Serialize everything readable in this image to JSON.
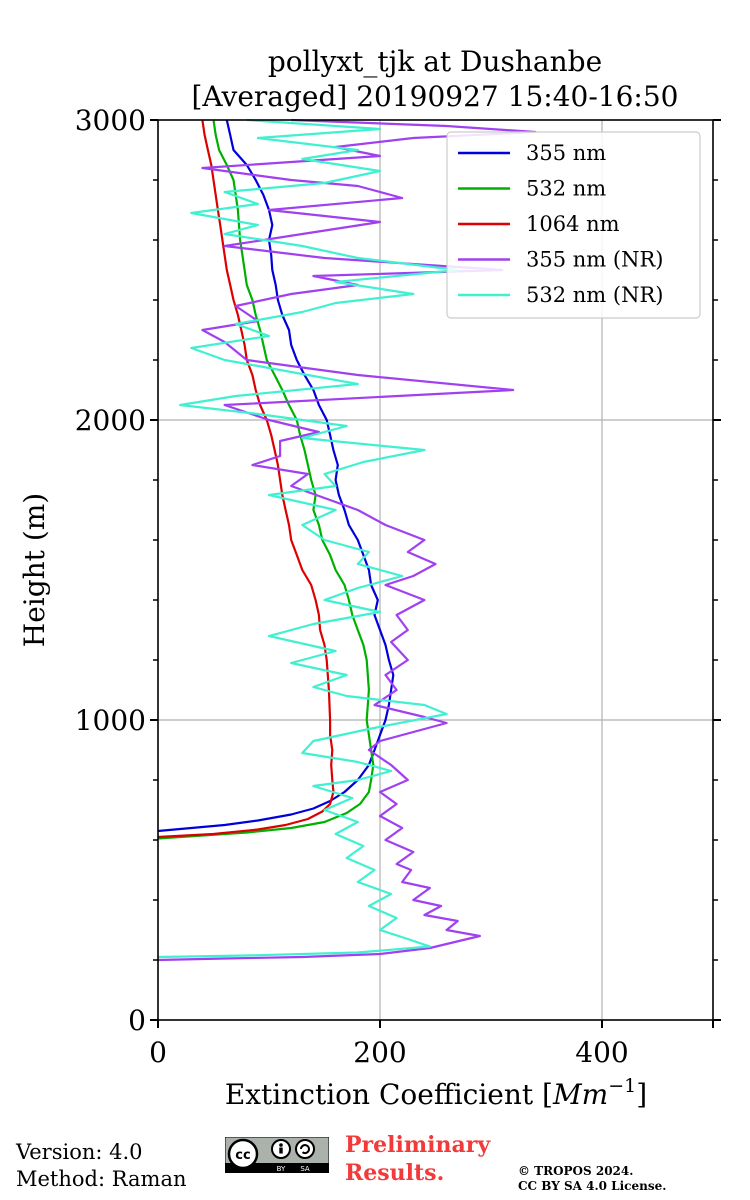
{
  "chart_data": {
    "type": "line",
    "title_line1": "pollyxt_tjk at Dushanbe",
    "title_line2": "[Averaged] 20190927 15:40-16:50",
    "xlabel_text": "Extinction Coefficient [",
    "xlabel_unit": "Mm",
    "xlabel_exp": "−1",
    "xlabel_close": "]",
    "ylabel": "Height (m)",
    "xlim": [
      0,
      500
    ],
    "ylim": [
      0,
      3000
    ],
    "x_ticks": [
      0,
      200,
      400
    ],
    "x_tick_labels": [
      "0",
      "200",
      "400"
    ],
    "y_ticks": [
      0,
      1000,
      2000,
      3000
    ],
    "y_tick_labels": [
      "0",
      "1000",
      "2000",
      "3000"
    ],
    "y_minor_step": 200,
    "grid": true,
    "legend_position": "top-right",
    "series": [
      {
        "name": "355 nm",
        "color": "#0000dd",
        "points": [
          [
            0,
            630
          ],
          [
            30,
            640
          ],
          [
            60,
            650
          ],
          [
            90,
            665
          ],
          [
            120,
            685
          ],
          [
            140,
            705
          ],
          [
            155,
            730
          ],
          [
            168,
            760
          ],
          [
            180,
            800
          ],
          [
            190,
            850
          ],
          [
            195,
            900
          ],
          [
            200,
            950
          ],
          [
            205,
            1000
          ],
          [
            208,
            1050
          ],
          [
            210,
            1100
          ],
          [
            212,
            1150
          ],
          [
            208,
            1200
          ],
          [
            205,
            1250
          ],
          [
            200,
            1300
          ],
          [
            195,
            1350
          ],
          [
            198,
            1400
          ],
          [
            192,
            1450
          ],
          [
            190,
            1500
          ],
          [
            185,
            1550
          ],
          [
            180,
            1600
          ],
          [
            172,
            1650
          ],
          [
            168,
            1700
          ],
          [
            163,
            1750
          ],
          [
            160,
            1800
          ],
          [
            162,
            1850
          ],
          [
            158,
            1900
          ],
          [
            155,
            1950
          ],
          [
            152,
            2000
          ],
          [
            145,
            2050
          ],
          [
            140,
            2100
          ],
          [
            132,
            2150
          ],
          [
            125,
            2200
          ],
          [
            120,
            2250
          ],
          [
            118,
            2300
          ],
          [
            112,
            2350
          ],
          [
            108,
            2400
          ],
          [
            106,
            2450
          ],
          [
            103,
            2500
          ],
          [
            102,
            2550
          ],
          [
            100,
            2600
          ],
          [
            103,
            2650
          ],
          [
            100,
            2700
          ],
          [
            95,
            2750
          ],
          [
            88,
            2800
          ],
          [
            80,
            2850
          ],
          [
            68,
            2900
          ],
          [
            65,
            2950
          ],
          [
            62,
            3000
          ]
        ]
      },
      {
        "name": "532 nm",
        "color": "#00b000",
        "points": [
          [
            0,
            605
          ],
          [
            40,
            615
          ],
          [
            80,
            625
          ],
          [
            120,
            640
          ],
          [
            150,
            660
          ],
          [
            170,
            690
          ],
          [
            182,
            720
          ],
          [
            190,
            760
          ],
          [
            192,
            800
          ],
          [
            194,
            850
          ],
          [
            192,
            900
          ],
          [
            190,
            950
          ],
          [
            188,
            1000
          ],
          [
            190,
            1100
          ],
          [
            188,
            1200
          ],
          [
            185,
            1250
          ],
          [
            180,
            1300
          ],
          [
            175,
            1350
          ],
          [
            172,
            1400
          ],
          [
            168,
            1450
          ],
          [
            160,
            1500
          ],
          [
            155,
            1550
          ],
          [
            148,
            1600
          ],
          [
            145,
            1650
          ],
          [
            140,
            1700
          ],
          [
            142,
            1750
          ],
          [
            138,
            1800
          ],
          [
            135,
            1850
          ],
          [
            132,
            1900
          ],
          [
            128,
            1950
          ],
          [
            125,
            2000
          ],
          [
            118,
            2050
          ],
          [
            112,
            2100
          ],
          [
            105,
            2150
          ],
          [
            98,
            2200
          ],
          [
            95,
            2250
          ],
          [
            92,
            2300
          ],
          [
            88,
            2350
          ],
          [
            85,
            2400
          ],
          [
            80,
            2450
          ],
          [
            78,
            2500
          ],
          [
            76,
            2550
          ],
          [
            74,
            2600
          ],
          [
            73,
            2650
          ],
          [
            72,
            2700
          ],
          [
            70,
            2750
          ],
          [
            68,
            2800
          ],
          [
            62,
            2850
          ],
          [
            55,
            2900
          ],
          [
            52,
            2950
          ],
          [
            50,
            3000
          ]
        ]
      },
      {
        "name": "1064 nm",
        "color": "#dd0000",
        "points": [
          [
            0,
            610
          ],
          [
            50,
            620
          ],
          [
            90,
            635
          ],
          [
            115,
            650
          ],
          [
            135,
            670
          ],
          [
            148,
            695
          ],
          [
            155,
            720
          ],
          [
            158,
            760
          ],
          [
            157,
            800
          ],
          [
            156,
            850
          ],
          [
            157,
            900
          ],
          [
            155,
            950
          ],
          [
            155,
            1000
          ],
          [
            154,
            1100
          ],
          [
            152,
            1200
          ],
          [
            150,
            1250
          ],
          [
            146,
            1300
          ],
          [
            145,
            1350
          ],
          [
            142,
            1400
          ],
          [
            138,
            1450
          ],
          [
            130,
            1500
          ],
          [
            125,
            1550
          ],
          [
            120,
            1600
          ],
          [
            118,
            1650
          ],
          [
            115,
            1700
          ],
          [
            112,
            1750
          ],
          [
            110,
            1800
          ],
          [
            108,
            1850
          ],
          [
            105,
            1900
          ],
          [
            102,
            1950
          ],
          [
            98,
            2000
          ],
          [
            92,
            2050
          ],
          [
            88,
            2100
          ],
          [
            85,
            2150
          ],
          [
            80,
            2200
          ],
          [
            78,
            2250
          ],
          [
            75,
            2300
          ],
          [
            72,
            2350
          ],
          [
            68,
            2400
          ],
          [
            65,
            2450
          ],
          [
            62,
            2500
          ],
          [
            60,
            2550
          ],
          [
            58,
            2600
          ],
          [
            56,
            2650
          ],
          [
            54,
            2700
          ],
          [
            52,
            2750
          ],
          [
            50,
            2800
          ],
          [
            48,
            2850
          ],
          [
            45,
            2900
          ],
          [
            42,
            2950
          ],
          [
            40,
            3000
          ]
        ]
      },
      {
        "name": "355 nm (NR)",
        "color": "#a040f0",
        "points": [
          [
            0,
            200
          ],
          [
            60,
            205
          ],
          [
            130,
            210
          ],
          [
            200,
            220
          ],
          [
            245,
            240
          ],
          [
            290,
            280
          ],
          [
            260,
            300
          ],
          [
            270,
            330
          ],
          [
            240,
            350
          ],
          [
            255,
            380
          ],
          [
            230,
            400
          ],
          [
            245,
            440
          ],
          [
            220,
            460
          ],
          [
            228,
            500
          ],
          [
            215,
            520
          ],
          [
            230,
            560
          ],
          [
            205,
            600
          ],
          [
            220,
            640
          ],
          [
            200,
            680
          ],
          [
            215,
            720
          ],
          [
            200,
            760
          ],
          [
            225,
            800
          ],
          [
            210,
            850
          ],
          [
            190,
            900
          ],
          [
            200,
            930
          ],
          [
            260,
            990
          ],
          [
            240,
            1010
          ],
          [
            195,
            1050
          ],
          [
            215,
            1100
          ],
          [
            205,
            1150
          ],
          [
            225,
            1200
          ],
          [
            210,
            1260
          ],
          [
            225,
            1300
          ],
          [
            215,
            1350
          ],
          [
            240,
            1400
          ],
          [
            205,
            1450
          ],
          [
            230,
            1480
          ],
          [
            250,
            1520
          ],
          [
            225,
            1560
          ],
          [
            240,
            1600
          ],
          [
            205,
            1650
          ],
          [
            180,
            1700
          ],
          [
            150,
            1740
          ],
          [
            120,
            1780
          ],
          [
            135,
            1820
          ],
          [
            85,
            1850
          ],
          [
            110,
            1880
          ],
          [
            110,
            1930
          ],
          [
            145,
            1960
          ],
          [
            100,
            2000
          ],
          [
            60,
            2050
          ],
          [
            320,
            2100
          ],
          [
            180,
            2150
          ],
          [
            80,
            2200
          ],
          [
            60,
            2260
          ],
          [
            40,
            2300
          ],
          [
            90,
            2330
          ],
          [
            70,
            2380
          ],
          [
            120,
            2420
          ],
          [
            180,
            2450
          ],
          [
            140,
            2480
          ],
          [
            310,
            2500
          ],
          [
            150,
            2540
          ],
          [
            60,
            2580
          ],
          [
            130,
            2620
          ],
          [
            200,
            2660
          ],
          [
            100,
            2700
          ],
          [
            220,
            2740
          ],
          [
            180,
            2780
          ],
          [
            120,
            2800
          ],
          [
            40,
            2840
          ],
          [
            120,
            2860
          ],
          [
            200,
            2880
          ],
          [
            160,
            2910
          ],
          [
            230,
            2940
          ],
          [
            340,
            2960
          ],
          [
            260,
            2980
          ],
          [
            120,
            3000
          ]
        ]
      },
      {
        "name": "532 nm (NR)",
        "color": "#40f0d0",
        "points": [
          [
            0,
            210
          ],
          [
            80,
            215
          ],
          [
            180,
            225
          ],
          [
            245,
            245
          ],
          [
            225,
            270
          ],
          [
            200,
            300
          ],
          [
            215,
            340
          ],
          [
            190,
            380
          ],
          [
            210,
            420
          ],
          [
            180,
            460
          ],
          [
            195,
            500
          ],
          [
            170,
            540
          ],
          [
            185,
            580
          ],
          [
            160,
            620
          ],
          [
            180,
            660
          ],
          [
            150,
            700
          ],
          [
            175,
            740
          ],
          [
            140,
            780
          ],
          [
            180,
            800
          ],
          [
            210,
            830
          ],
          [
            180,
            860
          ],
          [
            130,
            890
          ],
          [
            140,
            930
          ],
          [
            190,
            970
          ],
          [
            260,
            1020
          ],
          [
            240,
            1050
          ],
          [
            170,
            1080
          ],
          [
            140,
            1110
          ],
          [
            170,
            1150
          ],
          [
            120,
            1190
          ],
          [
            160,
            1230
          ],
          [
            100,
            1280
          ],
          [
            140,
            1320
          ],
          [
            200,
            1360
          ],
          [
            150,
            1400
          ],
          [
            180,
            1440
          ],
          [
            220,
            1480
          ],
          [
            180,
            1520
          ],
          [
            190,
            1560
          ],
          [
            150,
            1600
          ],
          [
            130,
            1650
          ],
          [
            160,
            1700
          ],
          [
            100,
            1750
          ],
          [
            160,
            1780
          ],
          [
            150,
            1820
          ],
          [
            185,
            1860
          ],
          [
            240,
            1900
          ],
          [
            130,
            1940
          ],
          [
            170,
            1980
          ],
          [
            90,
            2020
          ],
          [
            20,
            2050
          ],
          [
            70,
            2080
          ],
          [
            180,
            2120
          ],
          [
            120,
            2160
          ],
          [
            60,
            2200
          ],
          [
            30,
            2240
          ],
          [
            100,
            2280
          ],
          [
            70,
            2320
          ],
          [
            130,
            2360
          ],
          [
            160,
            2390
          ],
          [
            230,
            2420
          ],
          [
            160,
            2460
          ],
          [
            270,
            2500
          ],
          [
            180,
            2540
          ],
          [
            130,
            2580
          ],
          [
            60,
            2620
          ],
          [
            90,
            2650
          ],
          [
            30,
            2690
          ],
          [
            90,
            2720
          ],
          [
            60,
            2760
          ],
          [
            150,
            2790
          ],
          [
            200,
            2830
          ],
          [
            130,
            2870
          ],
          [
            180,
            2900
          ],
          [
            90,
            2940
          ],
          [
            200,
            2970
          ],
          [
            80,
            3000
          ]
        ]
      }
    ]
  },
  "footer": {
    "version": "Version: 4.0",
    "method": "Method: Raman",
    "preliminary_line1": "Preliminary",
    "preliminary_line2": "Results.",
    "copyright_line1": "© TROPOS 2024.",
    "copyright_line2": "CC BY SA 4.0 License.",
    "cc_label": "cc",
    "by_label": "BY",
    "sa_label": "SA"
  }
}
